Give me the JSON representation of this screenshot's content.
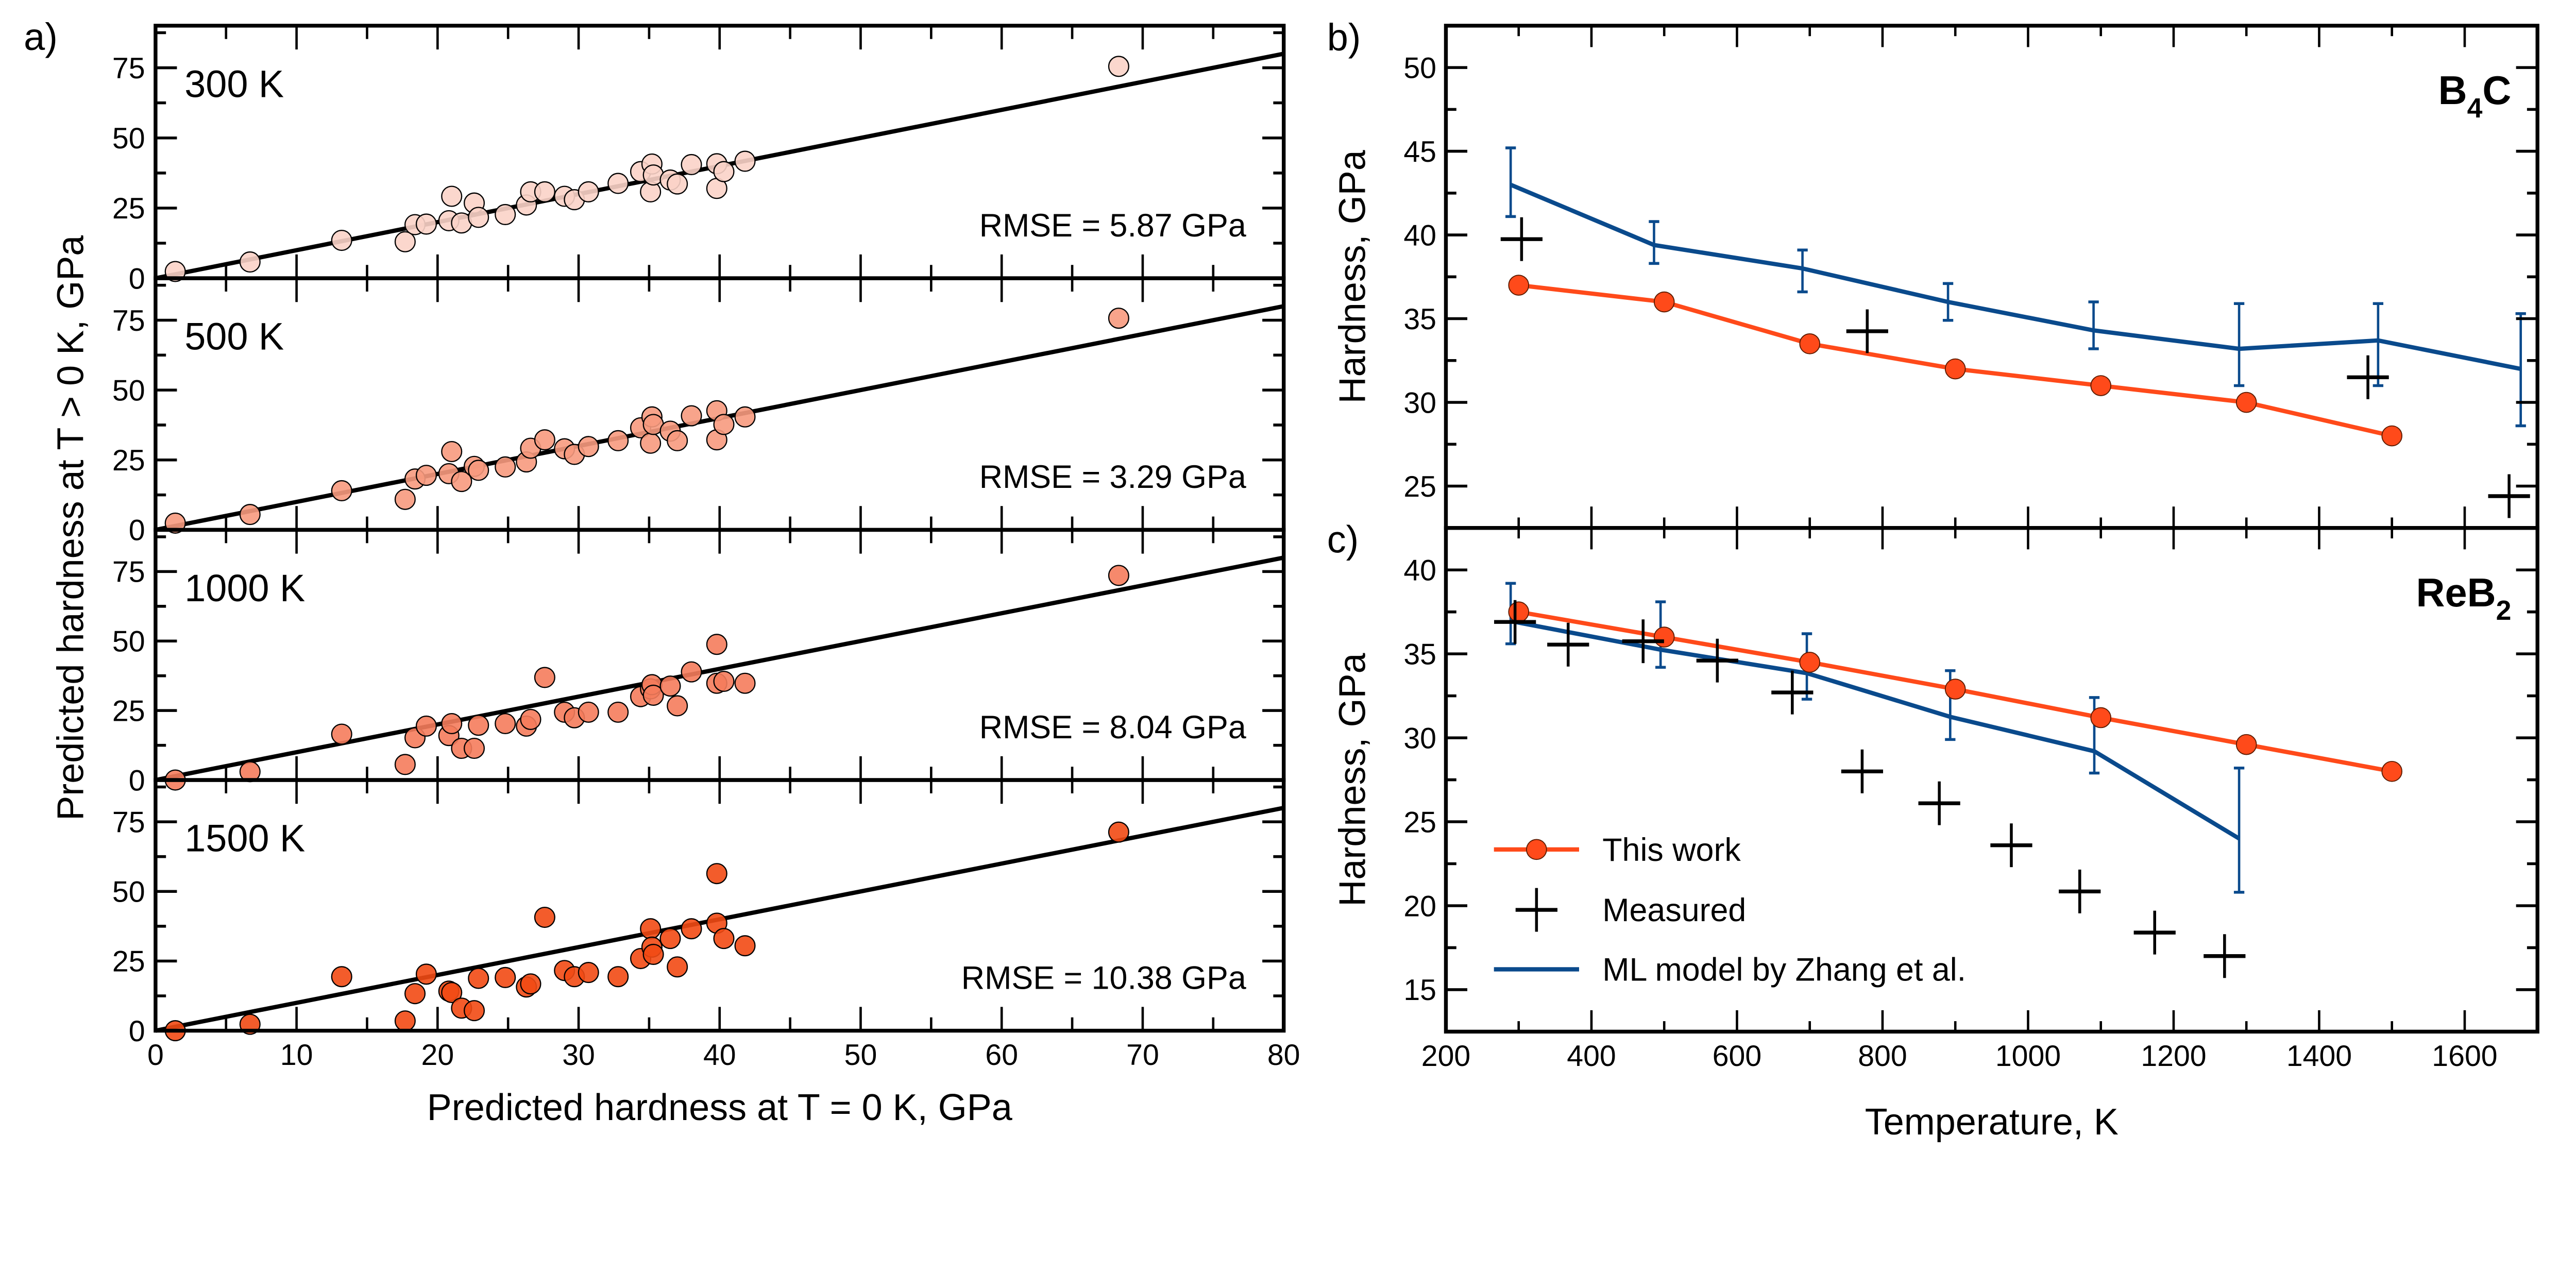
{
  "chart_data": [
    {
      "type": "scatter",
      "panel_label": "a)",
      "xlabel": "Predicted hardness at T = 0 K, GPa",
      "ylabel": "Predicted hardness at T > 0 K, GPa",
      "xlim": [
        0,
        80
      ],
      "ylim": [
        0,
        90
      ],
      "xticks": [
        "0",
        "10",
        "20",
        "30",
        "40",
        "50",
        "60",
        "70",
        "80"
      ],
      "yticks": [
        "0",
        "25",
        "50",
        "75"
      ],
      "x": [
        1.4,
        6.7,
        13.2,
        17.7,
        18.4,
        19.2,
        20.8,
        21.0,
        21.7,
        22.6,
        22.9,
        24.8,
        26.3,
        26.6,
        27.6,
        29.0,
        29.7,
        30.7,
        32.8,
        34.4,
        35.1,
        35.2,
        35.3,
        36.5,
        37.0,
        38.0,
        39.8,
        39.8,
        40.3,
        41.8,
        68.3
      ],
      "subplots": [
        {
          "label": "300 K",
          "rmse": "RMSE = 5.87 GPa",
          "color": "#fbd3c8",
          "y": [
            2.4,
            5.8,
            13.5,
            13.0,
            19.1,
            19.3,
            20.5,
            29.2,
            19.7,
            26.8,
            21.7,
            22.7,
            26.1,
            30.8,
            30.8,
            29.2,
            28.0,
            30.8,
            33.8,
            38.0,
            30.8,
            40.7,
            36.8,
            35.0,
            33.6,
            40.5,
            40.8,
            32.0,
            38.0,
            41.7,
            75.5
          ]
        },
        {
          "label": "500 K",
          "rmse": "RMSE = 3.29 GPa",
          "color": "#f79a7e",
          "y": [
            2.4,
            5.5,
            14.0,
            10.9,
            18.2,
            19.5,
            20.1,
            28.0,
            17.3,
            22.7,
            21.3,
            22.5,
            24.3,
            29.2,
            32.2,
            29.0,
            27.0,
            29.8,
            31.9,
            36.5,
            31.0,
            40.4,
            37.7,
            35.3,
            31.9,
            40.8,
            42.6,
            32.2,
            37.7,
            40.4,
            75.7
          ]
        },
        {
          "label": "1000 K",
          "rmse": "RMSE = 8.04 GPa",
          "color": "#f57c5c",
          "y": [
            0,
            3.0,
            16.5,
            5.6,
            15.2,
            19.4,
            16.0,
            20.3,
            11.4,
            11.4,
            19.7,
            20.3,
            19.4,
            21.8,
            36.9,
            24.4,
            22.4,
            24.4,
            24.4,
            30.0,
            32.8,
            34.3,
            30.5,
            33.8,
            26.7,
            38.9,
            48.8,
            34.8,
            35.5,
            34.8,
            73.6
          ]
        },
        {
          "label": "1500 K",
          "rmse": "RMSE = 10.38 GPa",
          "color": "#f24a14",
          "y": [
            0,
            2.3,
            19.4,
            3.5,
            13.3,
            20.3,
            14.2,
            13.7,
            8.1,
            7.2,
            18.8,
            19.1,
            15.7,
            16.8,
            40.7,
            21.6,
            19.4,
            20.9,
            19.4,
            25.9,
            36.6,
            30.0,
            27.4,
            33.1,
            22.9,
            36.6,
            56.4,
            38.6,
            33.1,
            30.5,
            71.3
          ]
        }
      ]
    },
    {
      "type": "line",
      "panel_label": "b)",
      "material": {
        "base": "B",
        "sub": "4",
        "rest": "C"
      },
      "ylabel": "Hardness, GPa",
      "xlim": [
        200,
        1700
      ],
      "ylim": [
        22.5,
        52.5
      ],
      "yticks": [
        "25",
        "30",
        "35",
        "40",
        "45",
        "50"
      ],
      "series": [
        {
          "name": "This work",
          "color": "#ff4a1a",
          "x": [
            300,
            500,
            700,
            900,
            1100,
            1300,
            1500
          ],
          "y": [
            37.0,
            36.0,
            33.5,
            32.0,
            31.0,
            30.0,
            28.0
          ]
        },
        {
          "name": "Measured",
          "color": "#000000",
          "x": [
            304,
            779,
            1467,
            1661
          ],
          "y": [
            39.75,
            34.25,
            31.5,
            24.4
          ]
        },
        {
          "name": "ML model by Zhang et al.",
          "color": "#0a4a8c",
          "x": [
            289,
            486,
            690,
            890,
            1090,
            1290,
            1481,
            1677
          ],
          "y": [
            43.0,
            39.4,
            38.0,
            36.0,
            34.3,
            33.2,
            33.7,
            32.0
          ],
          "err_low": [
            41.1,
            38.3,
            36.6,
            34.9,
            33.2,
            31.0,
            31.0,
            28.6
          ],
          "err_high": [
            45.2,
            40.8,
            39.1,
            37.1,
            36.0,
            35.9,
            35.9,
            35.3
          ]
        }
      ]
    },
    {
      "type": "line",
      "panel_label": "c)",
      "material": {
        "base": "ReB",
        "sub": "2",
        "rest": ""
      },
      "xlabel": "Temperature, K",
      "ylabel": "Hardness, GPa",
      "xlim": [
        200,
        1700
      ],
      "ylim": [
        12.5,
        42.5
      ],
      "xticks": [
        "200",
        "400",
        "600",
        "800",
        "1000",
        "1200",
        "1400",
        "1600"
      ],
      "yticks": [
        "15",
        "20",
        "25",
        "30",
        "35",
        "40"
      ],
      "legend": "bottom-left",
      "series": [
        {
          "name": "This work",
          "color": "#ff4a1a",
          "x": [
            300,
            500,
            700,
            900,
            1100,
            1300,
            1500
          ],
          "y": [
            37.5,
            36.0,
            34.5,
            32.9,
            31.2,
            29.6,
            28.0
          ]
        },
        {
          "name": "Measured",
          "color": "#000000",
          "x": [
            295,
            368,
            471,
            573,
            676,
            772,
            878,
            977,
            1071,
            1174,
            1270
          ],
          "y": [
            36.9,
            35.55,
            35.75,
            34.6,
            32.7,
            28.0,
            26.1,
            23.6,
            20.85,
            18.4,
            17.0
          ]
        },
        {
          "name": "ML model by Zhang et al.",
          "color": "#0a4a8c",
          "x": [
            289,
            495,
            696,
            893,
            1091,
            1290
          ],
          "y": [
            36.95,
            35.25,
            33.85,
            31.25,
            29.2,
            24.0
          ],
          "err_low": [
            35.6,
            34.2,
            32.3,
            29.9,
            27.9,
            20.8
          ],
          "err_high": [
            39.2,
            38.1,
            36.2,
            34.0,
            32.4,
            28.2
          ]
        }
      ]
    }
  ]
}
